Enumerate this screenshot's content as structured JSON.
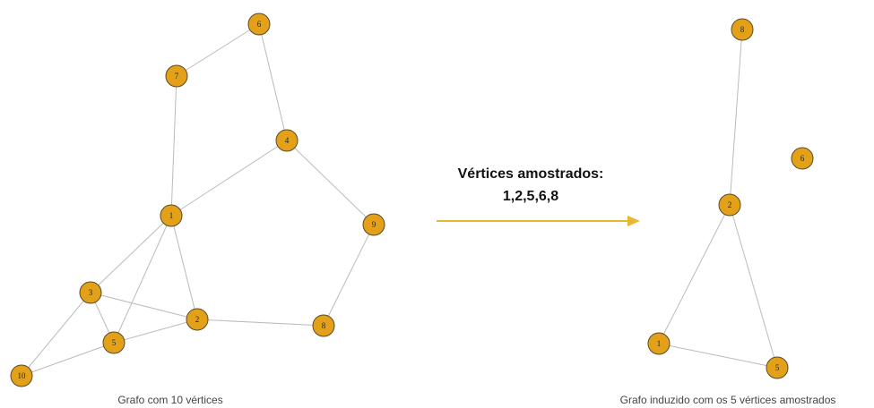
{
  "left_graph": {
    "caption": "Grafo com 10 vértices",
    "nodes": [
      {
        "label": "1"
      },
      {
        "label": "2"
      },
      {
        "label": "3"
      },
      {
        "label": "4"
      },
      {
        "label": "5"
      },
      {
        "label": "6"
      },
      {
        "label": "7"
      },
      {
        "label": "8"
      },
      {
        "label": "9"
      },
      {
        "label": "10"
      }
    ]
  },
  "arrow": {
    "title": "Vértices amostrados:",
    "sample": "1,2,5,6,8"
  },
  "right_graph": {
    "caption": "Grafo induzido com os 5 vértices amostrados",
    "nodes": [
      {
        "label": "1"
      },
      {
        "label": "2"
      },
      {
        "label": "5"
      },
      {
        "label": "6"
      },
      {
        "label": "8"
      }
    ]
  }
}
